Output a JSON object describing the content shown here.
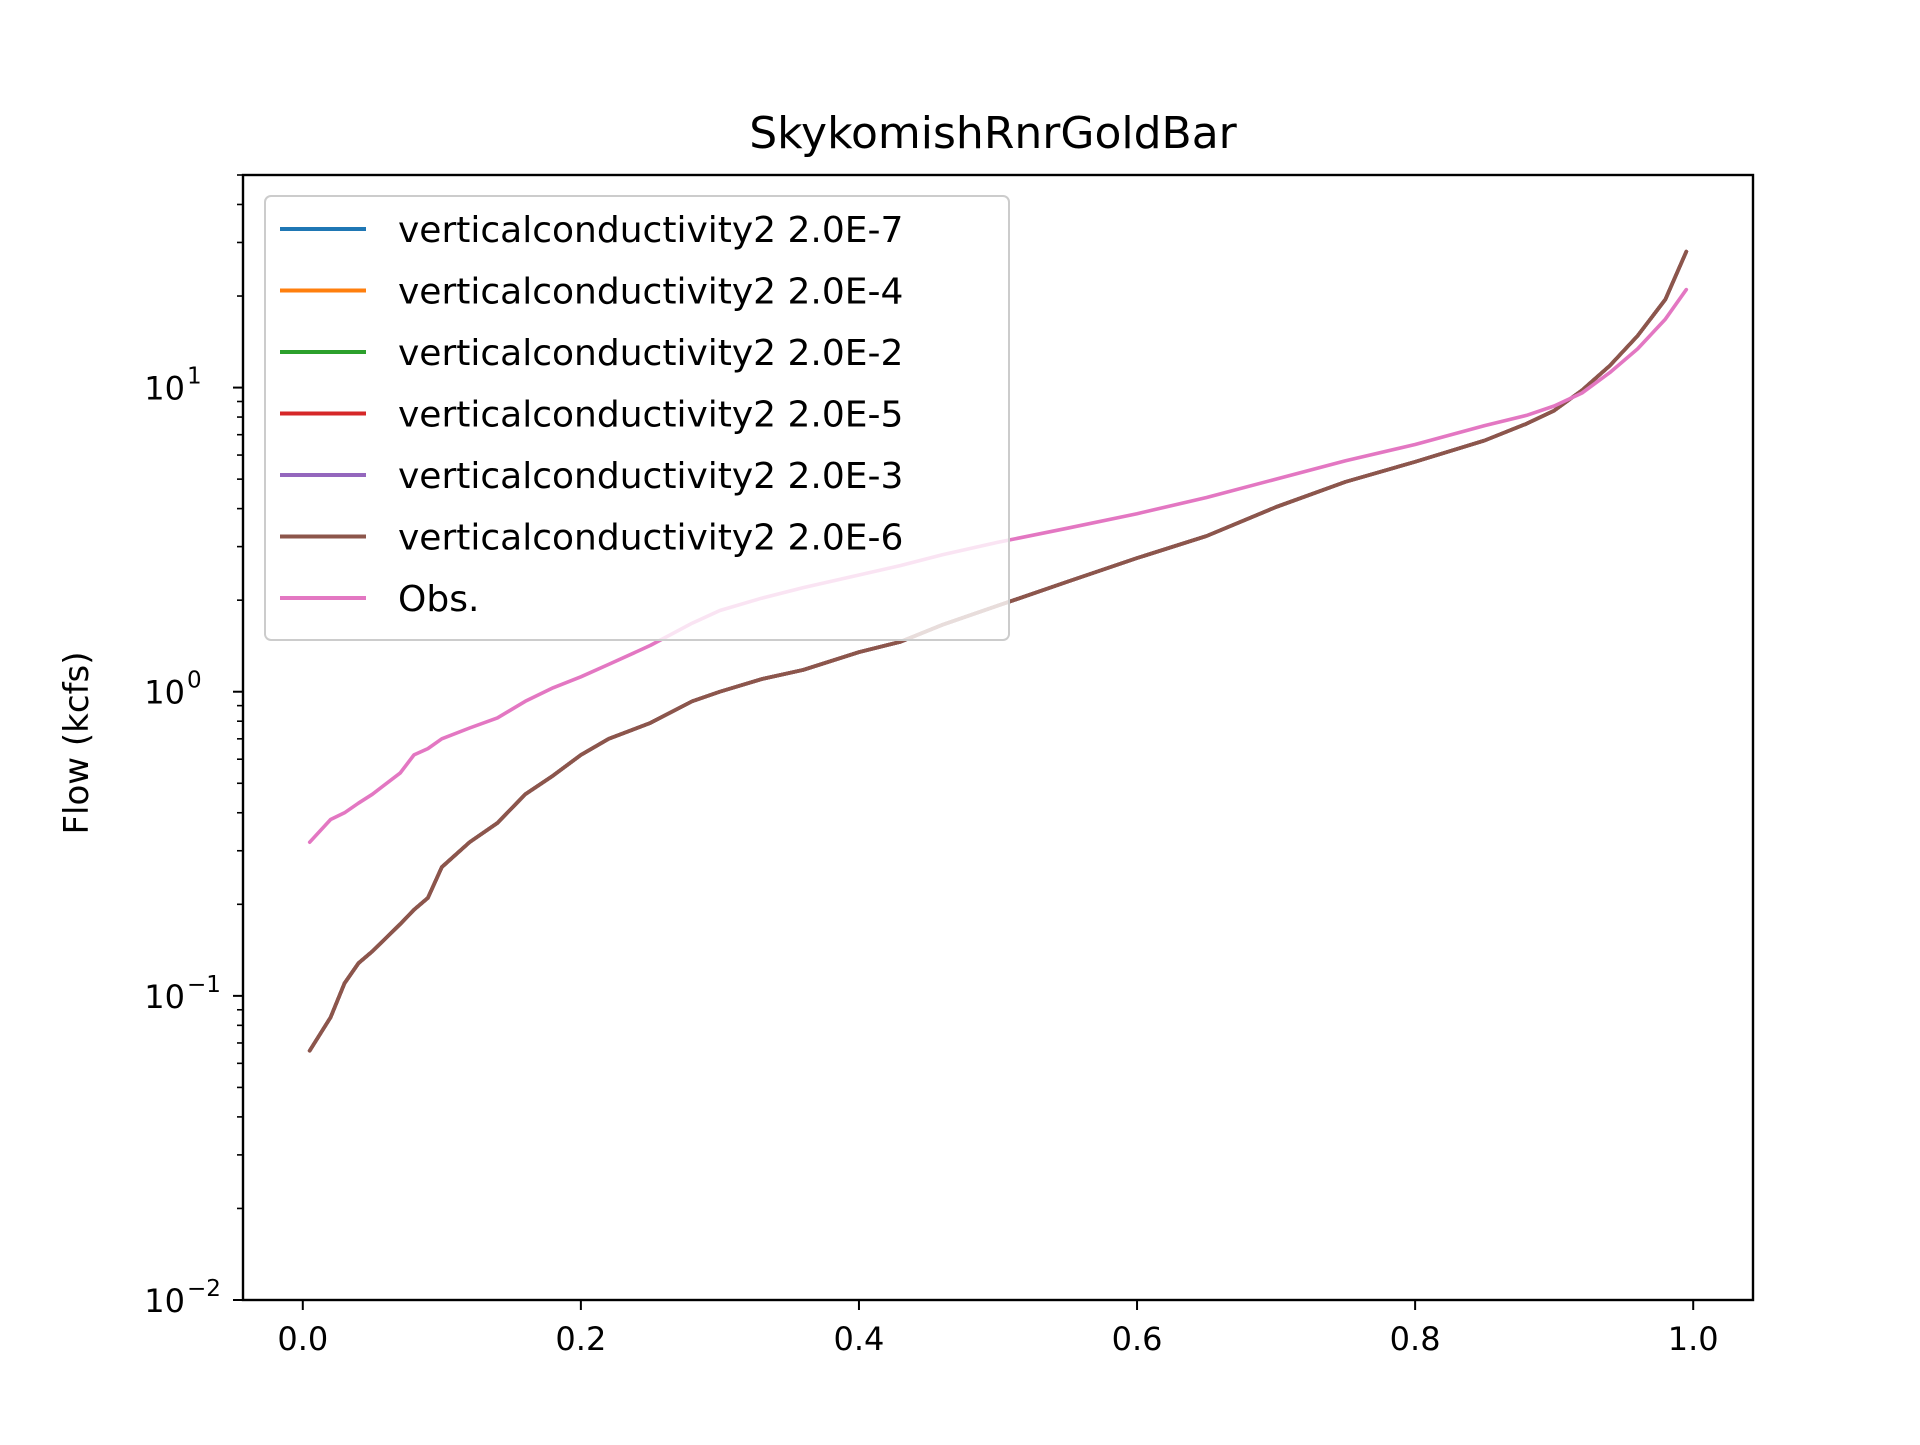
{
  "chart_data": {
    "type": "line",
    "title": "SkykomishRnrGoldBar",
    "xlabel": "",
    "ylabel": "Flow (kcfs)",
    "xlim": [
      -0.043,
      1.043
    ],
    "ylim": [
      0.01,
      50
    ],
    "yscale": "log",
    "grid": false,
    "legend_position": "top-left",
    "x_ticks": [
      "0.0",
      "0.2",
      "0.4",
      "0.6",
      "0.8",
      "1.0"
    ],
    "y_ticks": [
      {
        "base": "10",
        "exp": "−2"
      },
      {
        "base": "10",
        "exp": "−1"
      },
      {
        "base": "10",
        "exp": "0"
      },
      {
        "base": "10",
        "exp": "1"
      }
    ],
    "x": [
      0.005,
      0.02,
      0.03,
      0.04,
      0.05,
      0.07,
      0.08,
      0.09,
      0.1,
      0.12,
      0.14,
      0.16,
      0.18,
      0.2,
      0.22,
      0.25,
      0.28,
      0.3,
      0.33,
      0.36,
      0.4,
      0.43,
      0.46,
      0.5,
      0.55,
      0.6,
      0.65,
      0.7,
      0.75,
      0.8,
      0.85,
      0.88,
      0.9,
      0.92,
      0.94,
      0.96,
      0.98,
      0.995
    ],
    "series": [
      {
        "name": "verticalconductivity2 2.0E-7",
        "color": "#1f77b4",
        "values": [
          0.066,
          0.085,
          0.11,
          0.128,
          0.14,
          0.172,
          0.192,
          0.21,
          0.265,
          0.32,
          0.37,
          0.46,
          0.53,
          0.62,
          0.7,
          0.79,
          0.93,
          1.0,
          1.1,
          1.18,
          1.35,
          1.46,
          1.66,
          1.92,
          2.3,
          2.75,
          3.25,
          4.05,
          4.9,
          5.7,
          6.7,
          7.6,
          8.4,
          9.8,
          11.8,
          14.8,
          19.5,
          28.0
        ]
      },
      {
        "name": "verticalconductivity2 2.0E-4",
        "color": "#ff7f0e",
        "values": [
          0.066,
          0.085,
          0.11,
          0.128,
          0.14,
          0.172,
          0.192,
          0.21,
          0.265,
          0.32,
          0.37,
          0.46,
          0.53,
          0.62,
          0.7,
          0.79,
          0.93,
          1.0,
          1.1,
          1.18,
          1.35,
          1.46,
          1.66,
          1.92,
          2.3,
          2.75,
          3.25,
          4.05,
          4.9,
          5.7,
          6.7,
          7.6,
          8.4,
          9.8,
          11.8,
          14.8,
          19.5,
          28.0
        ]
      },
      {
        "name": "verticalconductivity2 2.0E-2",
        "color": "#2ca02c",
        "values": [
          0.066,
          0.085,
          0.11,
          0.128,
          0.14,
          0.172,
          0.192,
          0.21,
          0.265,
          0.32,
          0.37,
          0.46,
          0.53,
          0.62,
          0.7,
          0.79,
          0.93,
          1.0,
          1.1,
          1.18,
          1.35,
          1.46,
          1.66,
          1.92,
          2.3,
          2.75,
          3.25,
          4.05,
          4.9,
          5.7,
          6.7,
          7.6,
          8.4,
          9.8,
          11.8,
          14.8,
          19.5,
          28.0
        ]
      },
      {
        "name": "verticalconductivity2 2.0E-5",
        "color": "#d62728",
        "values": [
          0.066,
          0.085,
          0.11,
          0.128,
          0.14,
          0.172,
          0.192,
          0.21,
          0.265,
          0.32,
          0.37,
          0.46,
          0.53,
          0.62,
          0.7,
          0.79,
          0.93,
          1.0,
          1.1,
          1.18,
          1.35,
          1.46,
          1.66,
          1.92,
          2.3,
          2.75,
          3.25,
          4.05,
          4.9,
          5.7,
          6.7,
          7.6,
          8.4,
          9.8,
          11.8,
          14.8,
          19.5,
          28.0
        ]
      },
      {
        "name": "verticalconductivity2 2.0E-3",
        "color": "#9467bd",
        "values": [
          0.066,
          0.085,
          0.11,
          0.128,
          0.14,
          0.172,
          0.192,
          0.21,
          0.265,
          0.32,
          0.37,
          0.46,
          0.53,
          0.62,
          0.7,
          0.79,
          0.93,
          1.0,
          1.1,
          1.18,
          1.35,
          1.46,
          1.66,
          1.92,
          2.3,
          2.75,
          3.25,
          4.05,
          4.9,
          5.7,
          6.7,
          7.6,
          8.4,
          9.8,
          11.8,
          14.8,
          19.5,
          28.0
        ]
      },
      {
        "name": "verticalconductivity2 2.0E-6",
        "color": "#8c564b",
        "values": [
          0.066,
          0.085,
          0.11,
          0.128,
          0.14,
          0.172,
          0.192,
          0.21,
          0.265,
          0.32,
          0.37,
          0.46,
          0.53,
          0.62,
          0.7,
          0.79,
          0.93,
          1.0,
          1.1,
          1.18,
          1.35,
          1.46,
          1.66,
          1.92,
          2.3,
          2.75,
          3.25,
          4.05,
          4.9,
          5.7,
          6.7,
          7.6,
          8.4,
          9.8,
          11.8,
          14.8,
          19.5,
          28.0
        ]
      },
      {
        "name": "Obs.",
        "color": "#e377c2",
        "values": [
          0.32,
          0.38,
          0.4,
          0.43,
          0.46,
          0.54,
          0.62,
          0.65,
          0.7,
          0.76,
          0.82,
          0.93,
          1.03,
          1.12,
          1.23,
          1.42,
          1.68,
          1.85,
          2.03,
          2.2,
          2.42,
          2.6,
          2.82,
          3.1,
          3.45,
          3.85,
          4.35,
          5.0,
          5.75,
          6.5,
          7.5,
          8.1,
          8.7,
          9.6,
          11.2,
          13.4,
          16.8,
          21.0
        ]
      }
    ]
  }
}
